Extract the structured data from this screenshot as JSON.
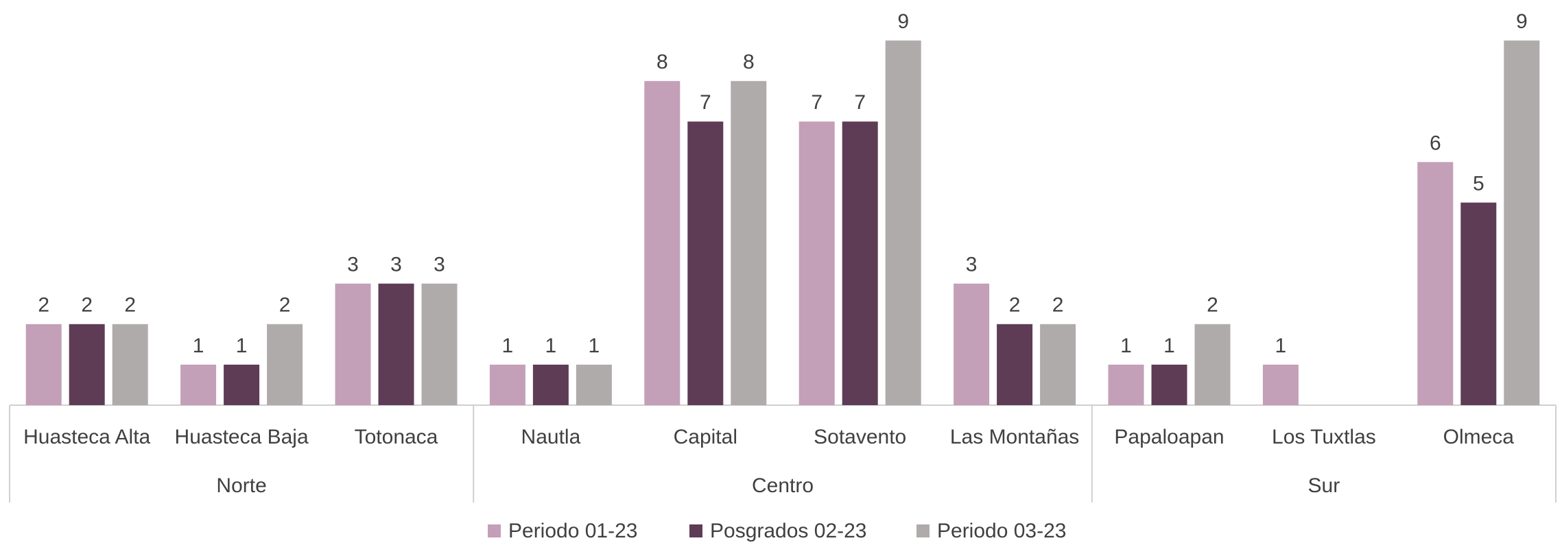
{
  "chart_data": {
    "type": "bar",
    "groups": [
      {
        "name": "Norte",
        "categories": [
          "Huasteca Alta",
          "Huasteca Baja",
          "Totonaca"
        ]
      },
      {
        "name": "Centro",
        "categories": [
          "Nautla",
          "Capital",
          "Sotavento",
          "Las Montañas"
        ]
      },
      {
        "name": "Sur",
        "categories": [
          "Papaloapan",
          "Los Tuxtlas",
          "Olmeca"
        ]
      }
    ],
    "series": [
      {
        "name": "Periodo 01-23",
        "color": "#c39fb8",
        "values": [
          2,
          1,
          3,
          1,
          8,
          7,
          3,
          1,
          1,
          6
        ]
      },
      {
        "name": "Posgrados 02-23",
        "color": "#5e3c55",
        "values": [
          2,
          1,
          3,
          1,
          7,
          7,
          2,
          1,
          null,
          5
        ]
      },
      {
        "name": "Periodo 03-23",
        "color": "#b0abab",
        "values": [
          2,
          2,
          3,
          1,
          8,
          9,
          2,
          2,
          null,
          9
        ]
      }
    ],
    "ylim": [
      0,
      10
    ],
    "legend": "bottom"
  }
}
